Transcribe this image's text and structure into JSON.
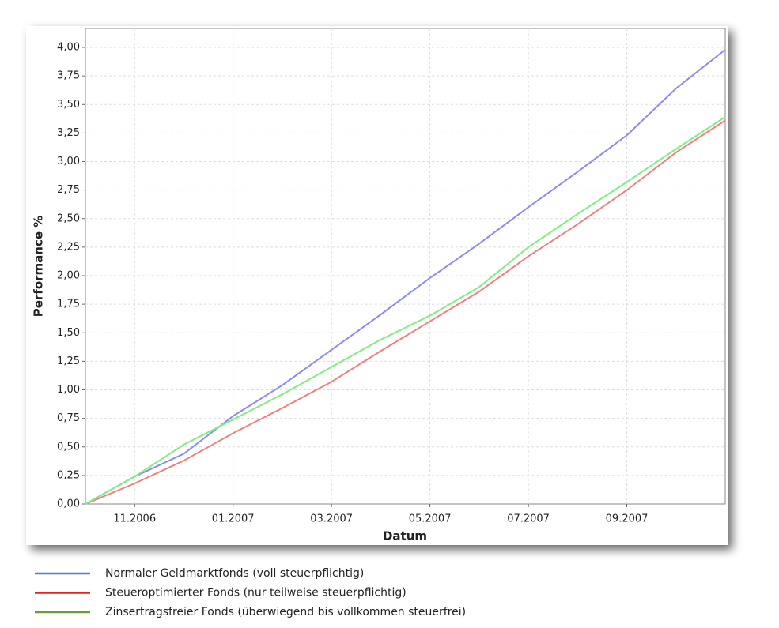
{
  "chart_data": {
    "type": "line",
    "x_label": "Datum",
    "y_label": "Performance %",
    "categories": [
      null,
      "11.2006",
      null,
      "01.2007",
      null,
      "03.2007",
      null,
      "05.2007",
      null,
      "07.2007",
      null,
      "09.2007",
      null,
      null
    ],
    "ylim": [
      0,
      4
    ],
    "yticks": [
      {
        "value": 0,
        "label": "0,00"
      },
      {
        "value": 0.25,
        "label": "0,25"
      },
      {
        "value": 0.5,
        "label": "0,50"
      },
      {
        "value": 0.75,
        "label": "0,75"
      },
      {
        "value": 1,
        "label": "1,00"
      },
      {
        "value": 1.25,
        "label": "1,25"
      },
      {
        "value": 1.5,
        "label": "1,50"
      },
      {
        "value": 1.75,
        "label": "1,75"
      },
      {
        "value": 2,
        "label": "2,00"
      },
      {
        "value": 2.25,
        "label": "2,25"
      },
      {
        "value": 2.5,
        "label": "2,50"
      },
      {
        "value": 2.75,
        "label": "2,75"
      },
      {
        "value": 3,
        "label": "3,00"
      },
      {
        "value": 3.25,
        "label": "3,25"
      },
      {
        "value": 3.5,
        "label": "3,50"
      },
      {
        "value": 3.75,
        "label": "3,75"
      },
      {
        "value": 4,
        "label": "4,00"
      }
    ],
    "grid": true,
    "series": [
      {
        "name": "Normaler Geldmarktfonds (voll steuerpflichtig)",
        "color": "#8a8cf0",
        "legend_color": "#4f7fd0",
        "label_color": "#1f3a5f",
        "values": [
          0,
          0.24,
          0.44,
          0.77,
          1.04,
          1.35,
          1.66,
          1.98,
          2.28,
          2.6,
          2.91,
          3.23,
          3.64,
          3.98
        ]
      },
      {
        "name": "Steueroptimierter Fonds (nur teilweise  steuerpflichtig)",
        "color": "#f08080",
        "legend_color": "#e82020",
        "label_color": "#9a1010",
        "values": [
          0,
          0.18,
          0.38,
          0.62,
          0.84,
          1.07,
          1.34,
          1.6,
          1.86,
          2.17,
          2.45,
          2.75,
          3.08,
          3.36
        ]
      },
      {
        "name": "Zinsertragsfreier Fonds (überwiegend bis vollkommen steuerfrei)",
        "color": "#80ee80",
        "legend_color": "#6a9e30",
        "label_color": "#4f6a1f",
        "values": [
          0,
          0.24,
          0.52,
          0.74,
          0.96,
          1.2,
          1.44,
          1.65,
          1.9,
          2.25,
          2.54,
          2.82,
          3.11,
          3.39
        ]
      }
    ]
  }
}
